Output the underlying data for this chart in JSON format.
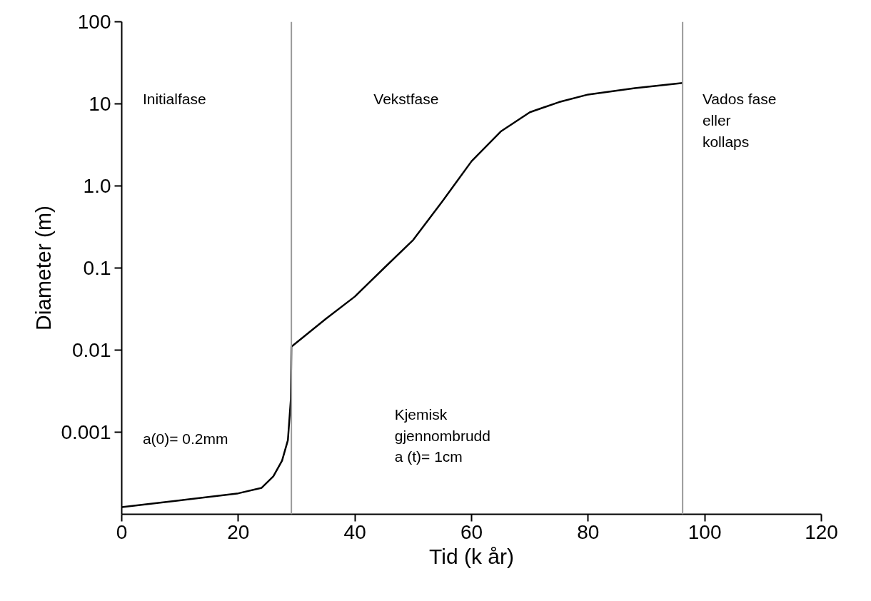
{
  "chart_data": {
    "type": "line",
    "xlabel": "Tid (k år)",
    "ylabel": "Diameter (m)",
    "x": [
      0,
      10,
      20,
      24,
      26,
      27.5,
      28.5,
      29,
      29.1,
      35,
      40,
      45,
      50,
      55,
      60,
      65,
      70,
      75,
      80,
      88,
      96.2
    ],
    "series": [
      {
        "color": "#000000",
        "values": [
          0.000122,
          0.000148,
          0.00018,
          0.00021,
          0.00029,
          0.00045,
          0.0008,
          0.0025,
          0.011,
          0.024,
          0.045,
          0.1,
          0.22,
          0.65,
          2.0,
          4.6,
          7.9,
          10.5,
          13,
          15.5,
          18
        ]
      }
    ],
    "log": "y",
    "xlim": [
      0,
      120
    ],
    "ylim": [
      0.0001,
      100
    ],
    "xticks": [
      0,
      20,
      40,
      60,
      80,
      100,
      120
    ],
    "yticks": [
      0.001,
      0.01,
      0.1,
      {
        "value": 1,
        "label": "1.0"
      },
      10,
      100
    ],
    "grid": false,
    "marker": "none",
    "line_style": "solid",
    "ref_lines": [
      {
        "axis": "x",
        "value": 29.1,
        "color": "#999999"
      },
      {
        "axis": "x",
        "value": 96.2,
        "color": "#999999"
      }
    ],
    "annotations": [
      "Initialfase",
      "Vekstfase",
      "Vados fase\neller\nkollaps",
      "a(0)= 0.2mm",
      "Kjemisk\ngjennombrudd\na (t)= 1cm"
    ]
  }
}
